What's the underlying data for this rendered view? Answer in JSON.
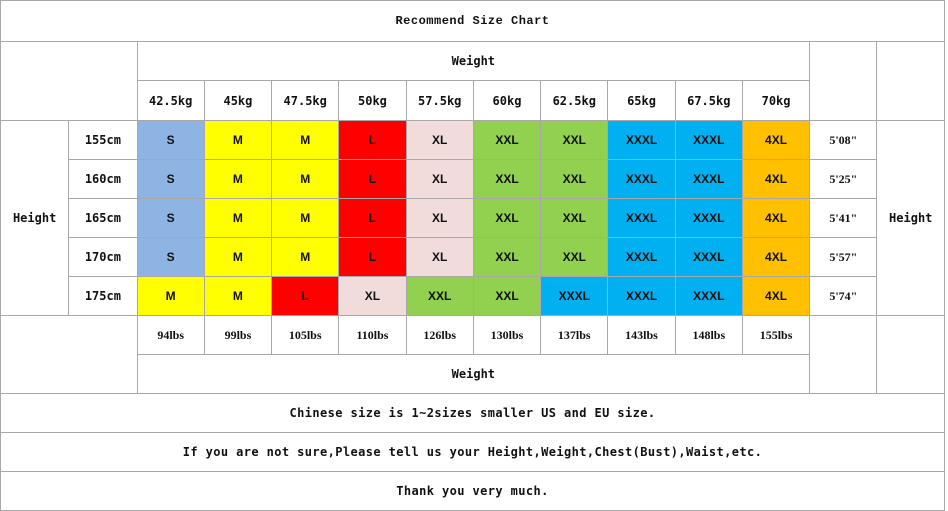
{
  "title": "Recommend Size Chart",
  "weight_label_top": "Weight",
  "weight_label_bottom": "Weight",
  "height_label_left": "Height",
  "height_label_right": "Height",
  "weights_kg": [
    "42.5kg",
    "45kg",
    "47.5kg",
    "50kg",
    "57.5kg",
    "60kg",
    "62.5kg",
    "65kg",
    "67.5kg",
    "70kg"
  ],
  "weights_lbs": [
    "94lbs",
    "99lbs",
    "105lbs",
    "110lbs",
    "126lbs",
    "130lbs",
    "137lbs",
    "143lbs",
    "148lbs",
    "155lbs"
  ],
  "colors": {
    "S": "#8eb4e3",
    "M": "#ffff00",
    "L": "#ff0000",
    "XL": "#f2dcdb",
    "XXL": "#92d050",
    "XXXL": "#00b0f0",
    "4XL": "#ffc000"
  },
  "rows": [
    {
      "height": "155cm",
      "ftin": "5'08\"",
      "sizes": [
        "S",
        "M",
        "M",
        "L",
        "XL",
        "XXL",
        "XXL",
        "XXXL",
        "XXXL",
        "4XL"
      ]
    },
    {
      "height": "160cm",
      "ftin": "5'25\"",
      "sizes": [
        "S",
        "M",
        "M",
        "L",
        "XL",
        "XXL",
        "XXL",
        "XXXL",
        "XXXL",
        "4XL"
      ]
    },
    {
      "height": "165cm",
      "ftin": "5'41\"",
      "sizes": [
        "S",
        "M",
        "M",
        "L",
        "XL",
        "XXL",
        "XXL",
        "XXXL",
        "XXXL",
        "4XL"
      ]
    },
    {
      "height": "170cm",
      "ftin": "5'57\"",
      "sizes": [
        "S",
        "M",
        "M",
        "L",
        "XL",
        "XXL",
        "XXL",
        "XXXL",
        "XXXL",
        "4XL"
      ]
    },
    {
      "height": "175cm",
      "ftin": "5'74\"",
      "sizes": [
        "M",
        "M",
        "L",
        "XL",
        "XXL",
        "XXL",
        "XXXL",
        "XXXL",
        "XXXL",
        "4XL"
      ]
    }
  ],
  "notes": [
    "Chinese size is 1~2sizes smaller US and EU size.",
    "If you are not sure,Please tell us your Height,Weight,Chest(Bust),Waist,etc.",
    "Thank you very much."
  ]
}
